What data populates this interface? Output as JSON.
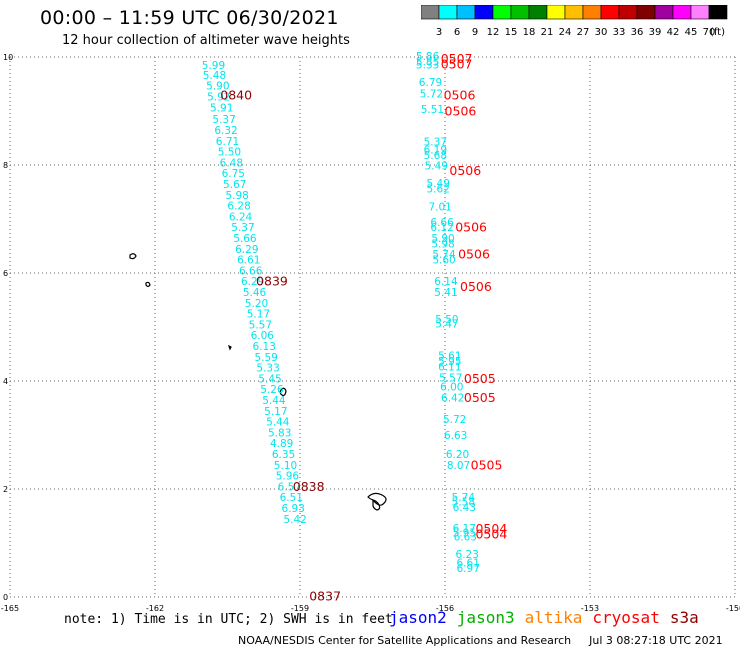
{
  "header": {
    "title": "00:00 – 11:59 UTC 06/30/2021",
    "subtitle": "12 hour collection of altimeter wave heights"
  },
  "legend": {
    "unit": "(ft)",
    "colors": [
      "#808080",
      "#00ffff",
      "#00bfff",
      "#0000ff",
      "#00ff00",
      "#00c000",
      "#008000",
      "#ffff00",
      "#ffbf00",
      "#ff8000",
      "#ff0000",
      "#c00000",
      "#800000",
      "#a000a0",
      "#ff00ff",
      "#ff80ff",
      "#000000"
    ],
    "labels": [
      "3",
      "6",
      "9",
      "12",
      "15",
      "18",
      "21",
      "24",
      "27",
      "30",
      "33",
      "36",
      "39",
      "42",
      "45",
      "70"
    ]
  },
  "footer": {
    "note": "note: 1) Time is in UTC; 2) SWH is in feet",
    "satellites": [
      {
        "name": "jason2",
        "color": "#0000ff"
      },
      {
        "name": "jason3",
        "color": "#00b000"
      },
      {
        "name": "altika",
        "color": "#ff8000"
      },
      {
        "name": "cryosat",
        "color": "#ff0000"
      },
      {
        "name": "s3a",
        "color": "#900000"
      }
    ],
    "credit": "NOAA/NESDIS Center for Satellite Applications and Research",
    "timestamp": "Jul  3 08:27:18 UTC 2021"
  },
  "chart_data": {
    "type": "scatter",
    "xlim": [
      -165,
      -150
    ],
    "ylim": [
      0,
      10
    ],
    "xticks": [
      -165,
      -162,
      -159,
      -156,
      -153,
      -150
    ],
    "yticks": [
      0,
      2,
      4,
      6,
      8,
      10
    ],
    "grid": true,
    "colors": {
      "wave": "#00e5ee",
      "s3a": "#900000",
      "cryosat": "#ff0000"
    },
    "series": [
      {
        "kind": "wave",
        "points": [
          {
            "x": -160.79,
            "y": 9.83,
            "label": "5.99"
          },
          {
            "x": -160.77,
            "y": 9.65,
            "label": "5.48"
          },
          {
            "x": -160.7,
            "y": 9.45,
            "label": "5.90"
          },
          {
            "x": -160.68,
            "y": 9.25,
            "label": "5.92"
          },
          {
            "x": -160.62,
            "y": 9.05,
            "label": "5.91"
          },
          {
            "x": -160.57,
            "y": 8.83,
            "label": "5.37"
          },
          {
            "x": -160.53,
            "y": 8.63,
            "label": "6.32"
          },
          {
            "x": -160.5,
            "y": 8.43,
            "label": "6.71"
          },
          {
            "x": -160.46,
            "y": 8.23,
            "label": "5.50"
          },
          {
            "x": -160.42,
            "y": 8.03,
            "label": "6.48"
          },
          {
            "x": -160.38,
            "y": 7.83,
            "label": "6.75"
          },
          {
            "x": -160.35,
            "y": 7.63,
            "label": "5.67"
          },
          {
            "x": -160.3,
            "y": 7.43,
            "label": "5.98"
          },
          {
            "x": -160.26,
            "y": 7.23,
            "label": "6.28"
          },
          {
            "x": -160.23,
            "y": 7.03,
            "label": "6.24"
          },
          {
            "x": -160.18,
            "y": 6.83,
            "label": "5.37"
          },
          {
            "x": -160.14,
            "y": 6.63,
            "label": "5.66"
          },
          {
            "x": -160.1,
            "y": 6.43,
            "label": "6.29"
          },
          {
            "x": -160.06,
            "y": 6.23,
            "label": "6.61"
          },
          {
            "x": -160.02,
            "y": 6.03,
            "label": "6.66"
          },
          {
            "x": -159.98,
            "y": 5.83,
            "label": "6.29"
          },
          {
            "x": -159.94,
            "y": 5.63,
            "label": "5.46"
          },
          {
            "x": -159.9,
            "y": 5.43,
            "label": "5.20"
          },
          {
            "x": -159.86,
            "y": 5.23,
            "label": "5.17"
          },
          {
            "x": -159.82,
            "y": 5.03,
            "label": "5.57"
          },
          {
            "x": -159.78,
            "y": 4.83,
            "label": "6.06"
          },
          {
            "x": -159.74,
            "y": 4.63,
            "label": "6.13"
          },
          {
            "x": -159.7,
            "y": 4.43,
            "label": "5.59"
          },
          {
            "x": -159.66,
            "y": 4.23,
            "label": "5.33"
          },
          {
            "x": -159.62,
            "y": 4.03,
            "label": "5.45"
          },
          {
            "x": -159.58,
            "y": 3.83,
            "label": "5.26"
          },
          {
            "x": -159.54,
            "y": 3.63,
            "label": "5.44"
          },
          {
            "x": -159.5,
            "y": 3.43,
            "label": "5.17"
          },
          {
            "x": -159.46,
            "y": 3.23,
            "label": "5.44"
          },
          {
            "x": -159.42,
            "y": 3.03,
            "label": "5.83"
          },
          {
            "x": -159.38,
            "y": 2.83,
            "label": "4.89"
          },
          {
            "x": -159.34,
            "y": 2.63,
            "label": "6.35"
          },
          {
            "x": -159.3,
            "y": 2.43,
            "label": "5.10"
          },
          {
            "x": -159.26,
            "y": 2.23,
            "label": "5.96"
          },
          {
            "x": -159.22,
            "y": 2.03,
            "label": "6.57"
          },
          {
            "x": -159.18,
            "y": 1.83,
            "label": "6.51"
          },
          {
            "x": -159.14,
            "y": 1.63,
            "label": "6.93"
          },
          {
            "x": -159.1,
            "y": 1.43,
            "label": "5.42"
          },
          {
            "x": -156.36,
            "y": 10.0,
            "label": "5.86"
          },
          {
            "x": -156.36,
            "y": 9.9,
            "label": "5.85"
          },
          {
            "x": -156.36,
            "y": 9.84,
            "label": "5.33"
          },
          {
            "x": -156.3,
            "y": 9.52,
            "label": "6.79"
          },
          {
            "x": -156.28,
            "y": 9.31,
            "label": "5.72"
          },
          {
            "x": -156.26,
            "y": 9.02,
            "label": "5.51"
          },
          {
            "x": -156.2,
            "y": 8.42,
            "label": "5.37"
          },
          {
            "x": -156.2,
            "y": 8.27,
            "label": "6.19"
          },
          {
            "x": -156.2,
            "y": 8.17,
            "label": "5.68"
          },
          {
            "x": -156.18,
            "y": 7.97,
            "label": "5.49"
          },
          {
            "x": -156.14,
            "y": 7.65,
            "label": "5.49"
          },
          {
            "x": -156.14,
            "y": 7.55,
            "label": "5.62"
          },
          {
            "x": -156.1,
            "y": 7.21,
            "label": "7.01"
          },
          {
            "x": -156.06,
            "y": 6.93,
            "label": "6.66"
          },
          {
            "x": -156.06,
            "y": 6.83,
            "label": "6.12"
          },
          {
            "x": -156.04,
            "y": 6.63,
            "label": "5.90"
          },
          {
            "x": -156.04,
            "y": 6.53,
            "label": "5.98"
          },
          {
            "x": -156.02,
            "y": 6.33,
            "label": "5.74"
          },
          {
            "x": -156.02,
            "y": 6.23,
            "label": "5.60"
          },
          {
            "x": -155.98,
            "y": 5.83,
            "label": "6.14"
          },
          {
            "x": -155.98,
            "y": 5.63,
            "label": "5.41"
          },
          {
            "x": -155.96,
            "y": 5.13,
            "label": "5.50"
          },
          {
            "x": -155.96,
            "y": 5.05,
            "label": "5.47"
          },
          {
            "x": -155.9,
            "y": 4.45,
            "label": "5.61"
          },
          {
            "x": -155.9,
            "y": 4.35,
            "label": "5.95"
          },
          {
            "x": -155.9,
            "y": 4.25,
            "label": "6.11"
          },
          {
            "x": -155.88,
            "y": 4.05,
            "label": "5.57"
          },
          {
            "x": -155.86,
            "y": 3.88,
            "label": "6.00"
          },
          {
            "x": -155.84,
            "y": 3.68,
            "label": "6.42"
          },
          {
            "x": -155.8,
            "y": 3.28,
            "label": "5.72"
          },
          {
            "x": -155.78,
            "y": 2.98,
            "label": "6.63"
          },
          {
            "x": -155.74,
            "y": 2.63,
            "label": "6.20"
          },
          {
            "x": -155.72,
            "y": 2.43,
            "label": "8.07"
          },
          {
            "x": -155.62,
            "y": 1.83,
            "label": "5.74"
          },
          {
            "x": -155.62,
            "y": 1.75,
            "label": "5.58"
          },
          {
            "x": -155.6,
            "y": 1.65,
            "label": "6.43"
          },
          {
            "x": -155.6,
            "y": 1.26,
            "label": "6.17"
          },
          {
            "x": -155.6,
            "y": 1.18,
            "label": "5.95"
          },
          {
            "x": -155.58,
            "y": 1.1,
            "label": "6.63"
          },
          {
            "x": -155.54,
            "y": 0.78,
            "label": "6.23"
          },
          {
            "x": -155.52,
            "y": 0.62,
            "label": "6.61"
          },
          {
            "x": -155.52,
            "y": 0.52,
            "label": "6.97"
          }
        ]
      },
      {
        "kind": "s3a",
        "points": [
          {
            "x": -160.32,
            "y": 9.28,
            "label": "0840"
          },
          {
            "x": -159.58,
            "y": 5.83,
            "label": "0839"
          },
          {
            "x": -158.82,
            "y": 2.03,
            "label": "0838"
          },
          {
            "x": -158.48,
            "y": 0.0,
            "label": "0837"
          }
        ]
      },
      {
        "kind": "cryosat",
        "points": [
          {
            "x": -155.76,
            "y": 9.95,
            "label": "0507"
          },
          {
            "x": -155.76,
            "y": 9.85,
            "label": "0507"
          },
          {
            "x": -155.7,
            "y": 9.28,
            "label": "0506"
          },
          {
            "x": -155.68,
            "y": 8.98,
            "label": "0506"
          },
          {
            "x": -155.58,
            "y": 7.88,
            "label": "0506"
          },
          {
            "x": -155.46,
            "y": 6.83,
            "label": "0506"
          },
          {
            "x": -155.4,
            "y": 6.33,
            "label": "0506"
          },
          {
            "x": -155.36,
            "y": 5.73,
            "label": "0506"
          },
          {
            "x": -155.28,
            "y": 4.03,
            "label": "0505"
          },
          {
            "x": -155.28,
            "y": 3.68,
            "label": "0505"
          },
          {
            "x": -155.14,
            "y": 2.43,
            "label": "0505"
          },
          {
            "x": -155.04,
            "y": 1.25,
            "label": "0504"
          },
          {
            "x": -155.04,
            "y": 1.15,
            "label": "0504"
          }
        ]
      }
    ]
  }
}
